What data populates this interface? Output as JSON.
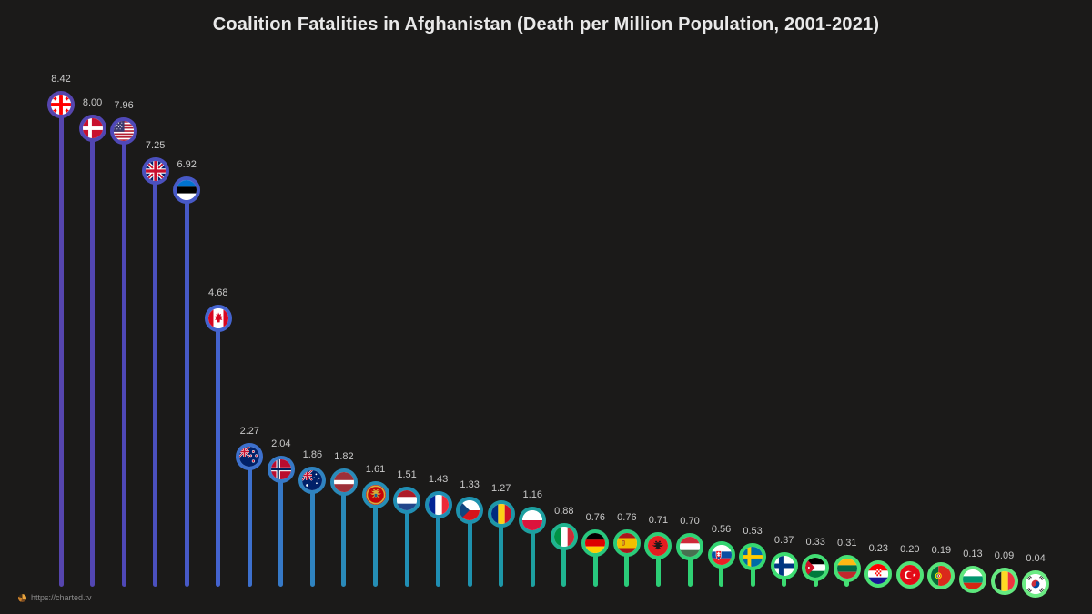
{
  "title": "Coalition Fatalities in Afghanistan (Death per Million Population, 2001-2021)",
  "watermark": {
    "icon": "charted-logo-icon",
    "url_text": "https://charted.tv"
  },
  "chart_data": {
    "type": "bar",
    "subtype": "lollipop-with-flag-markers",
    "title": "Coalition Fatalities in Afghanistan (Death per Million Population, 2001-2021)",
    "xlabel": "",
    "ylabel": "Deaths per million population",
    "ylim": [
      0,
      9
    ],
    "grid": false,
    "legend": "none",
    "categories": [
      "Georgia",
      "Denmark",
      "United States",
      "United Kingdom",
      "Estonia",
      "Canada",
      "New Zealand",
      "Norway",
      "Australia",
      "Latvia",
      "Montenegro",
      "Netherlands",
      "France",
      "Czech Republic",
      "Romania",
      "Poland",
      "Italy",
      "Germany",
      "Spain",
      "Albania",
      "Hungary",
      "Slovakia",
      "Sweden",
      "Finland",
      "Jordan",
      "Lithuania",
      "Croatia",
      "Turkey",
      "Portugal",
      "Bulgaria",
      "Belgium",
      "South Korea"
    ],
    "values": [
      8.42,
      8.0,
      7.96,
      7.25,
      6.92,
      4.68,
      2.27,
      2.04,
      1.86,
      1.82,
      1.61,
      1.51,
      1.43,
      1.33,
      1.27,
      1.16,
      0.88,
      0.76,
      0.76,
      0.71,
      0.7,
      0.56,
      0.53,
      0.37,
      0.33,
      0.31,
      0.23,
      0.2,
      0.19,
      0.13,
      0.09,
      0.04
    ],
    "items": [
      {
        "id": "georgia",
        "country": "Georgia",
        "value": 8.42,
        "label": "8.42",
        "flag": "flag-georgia-icon",
        "color": "#5645ae"
      },
      {
        "id": "denmark",
        "country": "Denmark",
        "value": 8.0,
        "label": "8.00",
        "flag": "flag-denmark-icon",
        "color": "#5246b2"
      },
      {
        "id": "usa",
        "country": "United States",
        "value": 7.96,
        "label": "7.96",
        "flag": "flag-usa-icon",
        "color": "#4f48b7"
      },
      {
        "id": "uk",
        "country": "United Kingdom",
        "value": 7.25,
        "label": "7.25",
        "flag": "flag-uk-icon",
        "color": "#4b50be"
      },
      {
        "id": "estonia",
        "country": "Estonia",
        "value": 6.92,
        "label": "6.92",
        "flag": "flag-estonia-icon",
        "color": "#4759c6"
      },
      {
        "id": "canada",
        "country": "Canada",
        "value": 4.68,
        "label": "4.68",
        "flag": "flag-canada-icon",
        "color": "#4463ce"
      },
      {
        "id": "new-zealand",
        "country": "New Zealand",
        "value": 2.27,
        "label": "2.27",
        "flag": "flag-new-zealand-icon",
        "color": "#3d70cd"
      },
      {
        "id": "norway",
        "country": "Norway",
        "value": 2.04,
        "label": "2.04",
        "flag": "flag-norway-icon",
        "color": "#3679c7"
      },
      {
        "id": "australia",
        "country": "Australia",
        "value": 1.86,
        "label": "1.86",
        "flag": "flag-australia-icon",
        "color": "#2f83c0"
      },
      {
        "id": "latvia",
        "country": "Latvia",
        "value": 1.82,
        "label": "1.82",
        "flag": "flag-latvia-icon",
        "color": "#2a8ab9"
      },
      {
        "id": "montenegro",
        "country": "Montenegro",
        "value": 1.61,
        "label": "1.61",
        "flag": "flag-montenegro-icon",
        "color": "#258eb5"
      },
      {
        "id": "netherlands",
        "country": "Netherlands",
        "value": 1.51,
        "label": "1.51",
        "flag": "flag-netherlands-icon",
        "color": "#218fb5"
      },
      {
        "id": "france",
        "country": "France",
        "value": 1.43,
        "label": "1.43",
        "flag": "flag-france-icon",
        "color": "#1f8eb3"
      },
      {
        "id": "czech-republic",
        "country": "Czech Republic",
        "value": 1.33,
        "label": "1.33",
        "flag": "flag-czech-republic-icon",
        "color": "#1e92ae"
      },
      {
        "id": "romania",
        "country": "Romania",
        "value": 1.27,
        "label": "1.27",
        "flag": "flag-romania-icon",
        "color": "#1d97a8"
      },
      {
        "id": "poland",
        "country": "Poland",
        "value": 1.16,
        "label": "1.16",
        "flag": "flag-poland-icon",
        "color": "#1da0a0"
      },
      {
        "id": "italy",
        "country": "Italy",
        "value": 0.88,
        "label": "0.88",
        "flag": "flag-italy-icon",
        "color": "#1fb590"
      },
      {
        "id": "germany",
        "country": "Germany",
        "value": 0.76,
        "label": "0.76",
        "flag": "flag-germany-icon",
        "color": "#28c77e"
      },
      {
        "id": "spain",
        "country": "Spain",
        "value": 0.76,
        "label": "0.76",
        "flag": "flag-spain-icon",
        "color": "#2bcb79"
      },
      {
        "id": "albania",
        "country": "Albania",
        "value": 0.71,
        "label": "0.71",
        "flag": "flag-albania-icon",
        "color": "#2dce76"
      },
      {
        "id": "hungary",
        "country": "Hungary",
        "value": 0.7,
        "label": "0.70",
        "flag": "flag-hungary-icon",
        "color": "#2fd174"
      },
      {
        "id": "slovakia",
        "country": "Slovakia",
        "value": 0.56,
        "label": "0.56",
        "flag": "flag-slovakia-icon",
        "color": "#32d471"
      },
      {
        "id": "sweden",
        "country": "Sweden",
        "value": 0.53,
        "label": "0.53",
        "flag": "flag-sweden-icon",
        "color": "#35d770"
      },
      {
        "id": "finland",
        "country": "Finland",
        "value": 0.37,
        "label": "0.37",
        "flag": "flag-finland-icon",
        "color": "#3cdc71"
      },
      {
        "id": "jordan",
        "country": "Jordan",
        "value": 0.33,
        "label": "0.33",
        "flag": "flag-jordan-icon",
        "color": "#41de73"
      },
      {
        "id": "lithuania",
        "country": "Lithuania",
        "value": 0.31,
        "label": "0.31",
        "flag": "flag-lithuania-icon",
        "color": "#46e074"
      },
      {
        "id": "croatia",
        "country": "Croatia",
        "value": 0.23,
        "label": "0.23",
        "flag": "flag-croatia-icon",
        "color": "#4be276"
      },
      {
        "id": "turkey",
        "country": "Turkey",
        "value": 0.2,
        "label": "0.20",
        "flag": "flag-turkey-icon",
        "color": "#50e378"
      },
      {
        "id": "portugal",
        "country": "Portugal",
        "value": 0.19,
        "label": "0.19",
        "flag": "flag-portugal-icon",
        "color": "#56e57a"
      },
      {
        "id": "bulgaria",
        "country": "Bulgaria",
        "value": 0.13,
        "label": "0.13",
        "flag": "flag-bulgaria-icon",
        "color": "#5de77d"
      },
      {
        "id": "belgium",
        "country": "Belgium",
        "value": 0.09,
        "label": "0.09",
        "flag": "flag-belgium-icon",
        "color": "#64e980"
      },
      {
        "id": "south-korea",
        "country": "South Korea",
        "value": 0.04,
        "label": "0.04",
        "flag": "flag-south-korea-icon",
        "color": "#6beb83"
      }
    ]
  }
}
